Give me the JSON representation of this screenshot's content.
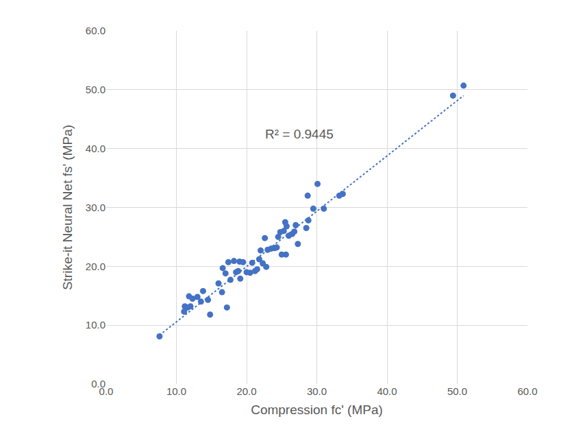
{
  "chart_data": {
    "type": "scatter",
    "x_label": "Compression fc' (MPa)",
    "y_label": "Strike-it Neural Net fs' (MPa)",
    "annotations": [
      {
        "text": "R² = 0.9445",
        "x": 27.5,
        "y": 42.5
      }
    ],
    "xlim": [
      0,
      60
    ],
    "ylim": [
      0,
      60
    ],
    "xticks": [
      {
        "value": 0,
        "label": "0.0"
      },
      {
        "value": 10,
        "label": "10.0"
      },
      {
        "value": 20,
        "label": "20.0"
      },
      {
        "value": 30,
        "label": "30.0"
      },
      {
        "value": 40,
        "label": "40.0"
      },
      {
        "value": 50,
        "label": "50.0"
      },
      {
        "value": 60,
        "label": "60.0"
      }
    ],
    "yticks": [
      {
        "value": 0,
        "label": "0.0"
      },
      {
        "value": 10,
        "label": "10.0"
      },
      {
        "value": 20,
        "label": "20.0"
      },
      {
        "value": 30,
        "label": "30.0"
      },
      {
        "value": 40,
        "label": "40.0"
      },
      {
        "value": 50,
        "label": "50.0"
      },
      {
        "value": 60,
        "label": "60.0"
      }
    ],
    "grid": true,
    "series": [
      {
        "type": "scatter",
        "marker": "circle",
        "color": "#4472c4",
        "x": [
          7.6,
          11.1,
          11.2,
          11.6,
          11.8,
          12.0,
          12.3,
          13.0,
          13.5,
          13.8,
          14.5,
          14.8,
          16.0,
          16.5,
          16.6,
          17.0,
          17.2,
          17.4,
          17.7,
          18.2,
          18.5,
          18.8,
          19.0,
          19.1,
          19.5,
          20.0,
          20.5,
          20.8,
          21.2,
          21.5,
          21.8,
          22.0,
          22.3,
          22.6,
          22.8,
          23.0,
          23.5,
          24.0,
          24.3,
          24.5,
          24.8,
          25.0,
          25.3,
          25.5,
          25.6,
          25.7,
          26.0,
          26.5,
          26.8,
          27.0,
          27.3,
          28.5,
          28.7,
          28.8,
          29.5,
          30.1,
          31.0,
          33.2,
          33.7,
          49.4,
          50.9
        ],
        "values": [
          8.1,
          12.3,
          13.2,
          13.0,
          14.9,
          13.2,
          14.5,
          14.8,
          14.0,
          15.8,
          14.3,
          11.8,
          17.1,
          15.6,
          19.7,
          18.8,
          13.0,
          20.7,
          17.7,
          20.9,
          19.0,
          19.2,
          20.8,
          17.9,
          20.7,
          19.0,
          18.9,
          20.6,
          19.2,
          19.5,
          21.2,
          22.7,
          20.5,
          24.8,
          19.9,
          22.8,
          23.0,
          23.1,
          23.2,
          25.0,
          25.8,
          22.0,
          26.0,
          27.5,
          22.0,
          26.8,
          25.2,
          25.5,
          25.9,
          27.0,
          23.8,
          26.5,
          32.0,
          27.8,
          29.8,
          34.0,
          29.8,
          32.0,
          32.3,
          49.0,
          50.7
        ]
      },
      {
        "type": "line",
        "line_style": "dot",
        "color": "#4472c4",
        "x": [
          7.6,
          50.9
        ],
        "values": [
          8.3,
          49.0
        ]
      }
    ]
  }
}
